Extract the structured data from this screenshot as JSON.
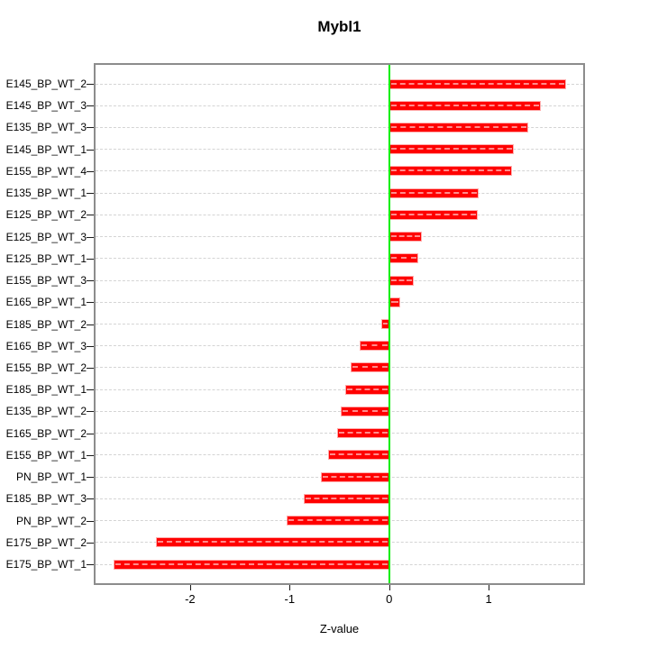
{
  "figure": {
    "title": "Mybl1",
    "xlabel": "Z-value"
  },
  "chart_data": {
    "type": "bar",
    "orientation": "horizontal",
    "title": "Mybl1",
    "xlabel": "Z-value",
    "ylabel": "",
    "categories": [
      "E145_BP_WT_2",
      "E145_BP_WT_3",
      "E135_BP_WT_3",
      "E145_BP_WT_1",
      "E155_BP_WT_4",
      "E135_BP_WT_1",
      "E125_BP_WT_2",
      "E125_BP_WT_3",
      "E125_BP_WT_1",
      "E155_BP_WT_3",
      "E165_BP_WT_1",
      "E185_BP_WT_2",
      "E165_BP_WT_3",
      "E155_BP_WT_2",
      "E185_BP_WT_1",
      "E135_BP_WT_2",
      "E165_BP_WT_2",
      "E155_BP_WT_1",
      "PN_BP_WT_1",
      "E185_BP_WT_3",
      "PN_BP_WT_2",
      "E175_BP_WT_2",
      "E175_BP_WT_1"
    ],
    "values": [
      1.78,
      1.52,
      1.4,
      1.25,
      1.23,
      0.9,
      0.89,
      0.33,
      0.29,
      0.25,
      0.11,
      -0.08,
      -0.3,
      -0.39,
      -0.44,
      -0.49,
      -0.52,
      -0.61,
      -0.69,
      -0.86,
      -1.03,
      -2.34,
      -2.77
    ],
    "xlim": [
      -2.95,
      1.95
    ],
    "xticks": [
      -2,
      -1,
      0,
      1
    ],
    "xtick_labels": [
      "-2",
      "-1",
      "0",
      "1"
    ],
    "grid": true,
    "legend_position": "none",
    "colors": {
      "bar_fill": "#FF0000",
      "bar_border": "#FFAAAA",
      "zero_line": "#00EE00",
      "grid_line": "#D4D4D4",
      "box_border": "#8C8C8C"
    }
  }
}
